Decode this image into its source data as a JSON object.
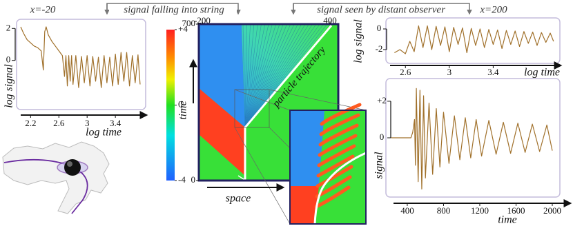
{
  "chart_data": [
    {
      "type": "line",
      "title": "x=-20",
      "subtitle": "signal falling into string",
      "xlabel": "log time",
      "ylabel": "log signal",
      "xlim": [
        2.06,
        3.77
      ],
      "ylim": [
        -2.9,
        2.4
      ],
      "xticks": [
        2.2,
        2.6,
        3,
        3.4
      ],
      "yticks": [
        2,
        0
      ],
      "x": [
        2.06,
        2.1,
        2.15,
        2.2,
        2.25,
        2.3,
        2.35,
        2.38,
        2.4,
        2.42,
        2.45,
        2.5,
        2.55,
        2.6,
        2.65,
        2.68,
        2.7,
        2.72,
        2.74,
        2.76,
        2.78,
        2.8,
        2.84,
        2.88,
        2.92,
        2.96,
        3.0,
        3.04,
        3.08,
        3.12,
        3.16,
        3.2,
        3.24,
        3.28,
        3.32,
        3.36,
        3.4,
        3.44,
        3.48,
        3.52,
        3.56,
        3.6,
        3.64,
        3.68,
        3.72,
        3.75
      ],
      "series": [
        {
          "color": "#a0702a",
          "values": [
            2.1,
            1.7,
            1.3,
            1.1,
            0.9,
            0.8,
            0.6,
            -0.6,
            1.8,
            2.1,
            1.6,
            1.2,
            0.9,
            0.6,
            0.3,
            -1.0,
            0.3,
            -1.6,
            0.3,
            -1.3,
            0.3,
            -1.5,
            0.3,
            -1.7,
            0.25,
            -1.4,
            0.3,
            -1.6,
            0.25,
            -1.3,
            0.2,
            -1.7,
            0.3,
            -1.4,
            0.2,
            -1.6,
            0.4,
            -1.5,
            0.5,
            -1.3,
            0.5,
            -1.6,
            0.3,
            -1.4,
            0.35,
            -1.5
          ]
        }
      ]
    },
    {
      "type": "line",
      "title": "x=200",
      "subtitle": "signal seen by distant observer",
      "xlabel": "log time",
      "ylabel": "log signal",
      "xlim": [
        2.46,
        3.97
      ],
      "ylim": [
        -3.07,
        0.8
      ],
      "xticks": [
        2.6,
        3,
        3.4
      ],
      "yticks": [
        0,
        -2
      ],
      "x": [
        2.5,
        2.55,
        2.6,
        2.64,
        2.68,
        2.72,
        2.76,
        2.8,
        2.84,
        2.88,
        2.92,
        2.96,
        3.0,
        3.04,
        3.08,
        3.12,
        3.16,
        3.2,
        3.24,
        3.28,
        3.32,
        3.36,
        3.4,
        3.44,
        3.48,
        3.52,
        3.56,
        3.6,
        3.64,
        3.68,
        3.72,
        3.76,
        3.8,
        3.84,
        3.88,
        3.92,
        3.95
      ],
      "series": [
        {
          "color": "#a0702a",
          "values": [
            -2.3,
            -2.0,
            -2.4,
            -1.2,
            -2.2,
            0.3,
            -1.8,
            0.3,
            -2.0,
            0.25,
            -1.6,
            0.2,
            -2.2,
            0.15,
            -1.5,
            0.1,
            -2.3,
            0.05,
            -1.6,
            0,
            -1.8,
            -0.05,
            -1.5,
            -0.1,
            -1.9,
            -0.15,
            -1.5,
            -0.2,
            -1.7,
            -0.25,
            -1.4,
            -0.3,
            -1.6,
            -0.35,
            -1.3,
            -0.4,
            -1.2
          ]
        }
      ]
    },
    {
      "type": "line",
      "xlabel": "time",
      "ylabel": "signal",
      "xlim": [
        210,
        2038
      ],
      "ylim": [
        -3.09,
        3.09
      ],
      "xticks": [
        400,
        800,
        1200,
        1600,
        2000
      ],
      "yticks": [
        {
          "value": 2,
          "label": "+2"
        },
        0
      ],
      "x": [
        220,
        440,
        460,
        480,
        490,
        500,
        520,
        540,
        560,
        580,
        600,
        640,
        680,
        720,
        760,
        800,
        860,
        920,
        980,
        1040,
        1100,
        1160,
        1220,
        1300,
        1380,
        1460,
        1540,
        1620,
        1700,
        1780,
        1860,
        1940,
        2000
      ],
      "series": [
        {
          "color": "#a0702a",
          "values": [
            0,
            0,
            0.3,
            1.0,
            -1.5,
            2.7,
            -2.4,
            2.6,
            -2.8,
            2.3,
            -2.2,
            1.9,
            -2.0,
            1.6,
            -1.6,
            1.4,
            -1.4,
            1.2,
            -1.2,
            1.1,
            -1.1,
            1.0,
            -1.0,
            0.95,
            -0.9,
            0.85,
            -0.85,
            0.8,
            -0.8,
            0.75,
            -0.75,
            0.7,
            -0.7
          ]
        }
      ]
    },
    {
      "type": "colorbar",
      "ylim": [
        -4,
        4
      ],
      "yticks": [
        {
          "value": 4,
          "label": "+4"
        },
        0,
        -4
      ]
    },
    {
      "type": "heatmap",
      "xlabel": "space",
      "ylabel": "time",
      "annotation": "particle trajectory",
      "xlim": [
        -200,
        400
      ],
      "ylim": [
        0,
        700
      ],
      "xticks": [
        -200,
        400
      ],
      "yticks": [
        0,
        700
      ]
    }
  ]
}
